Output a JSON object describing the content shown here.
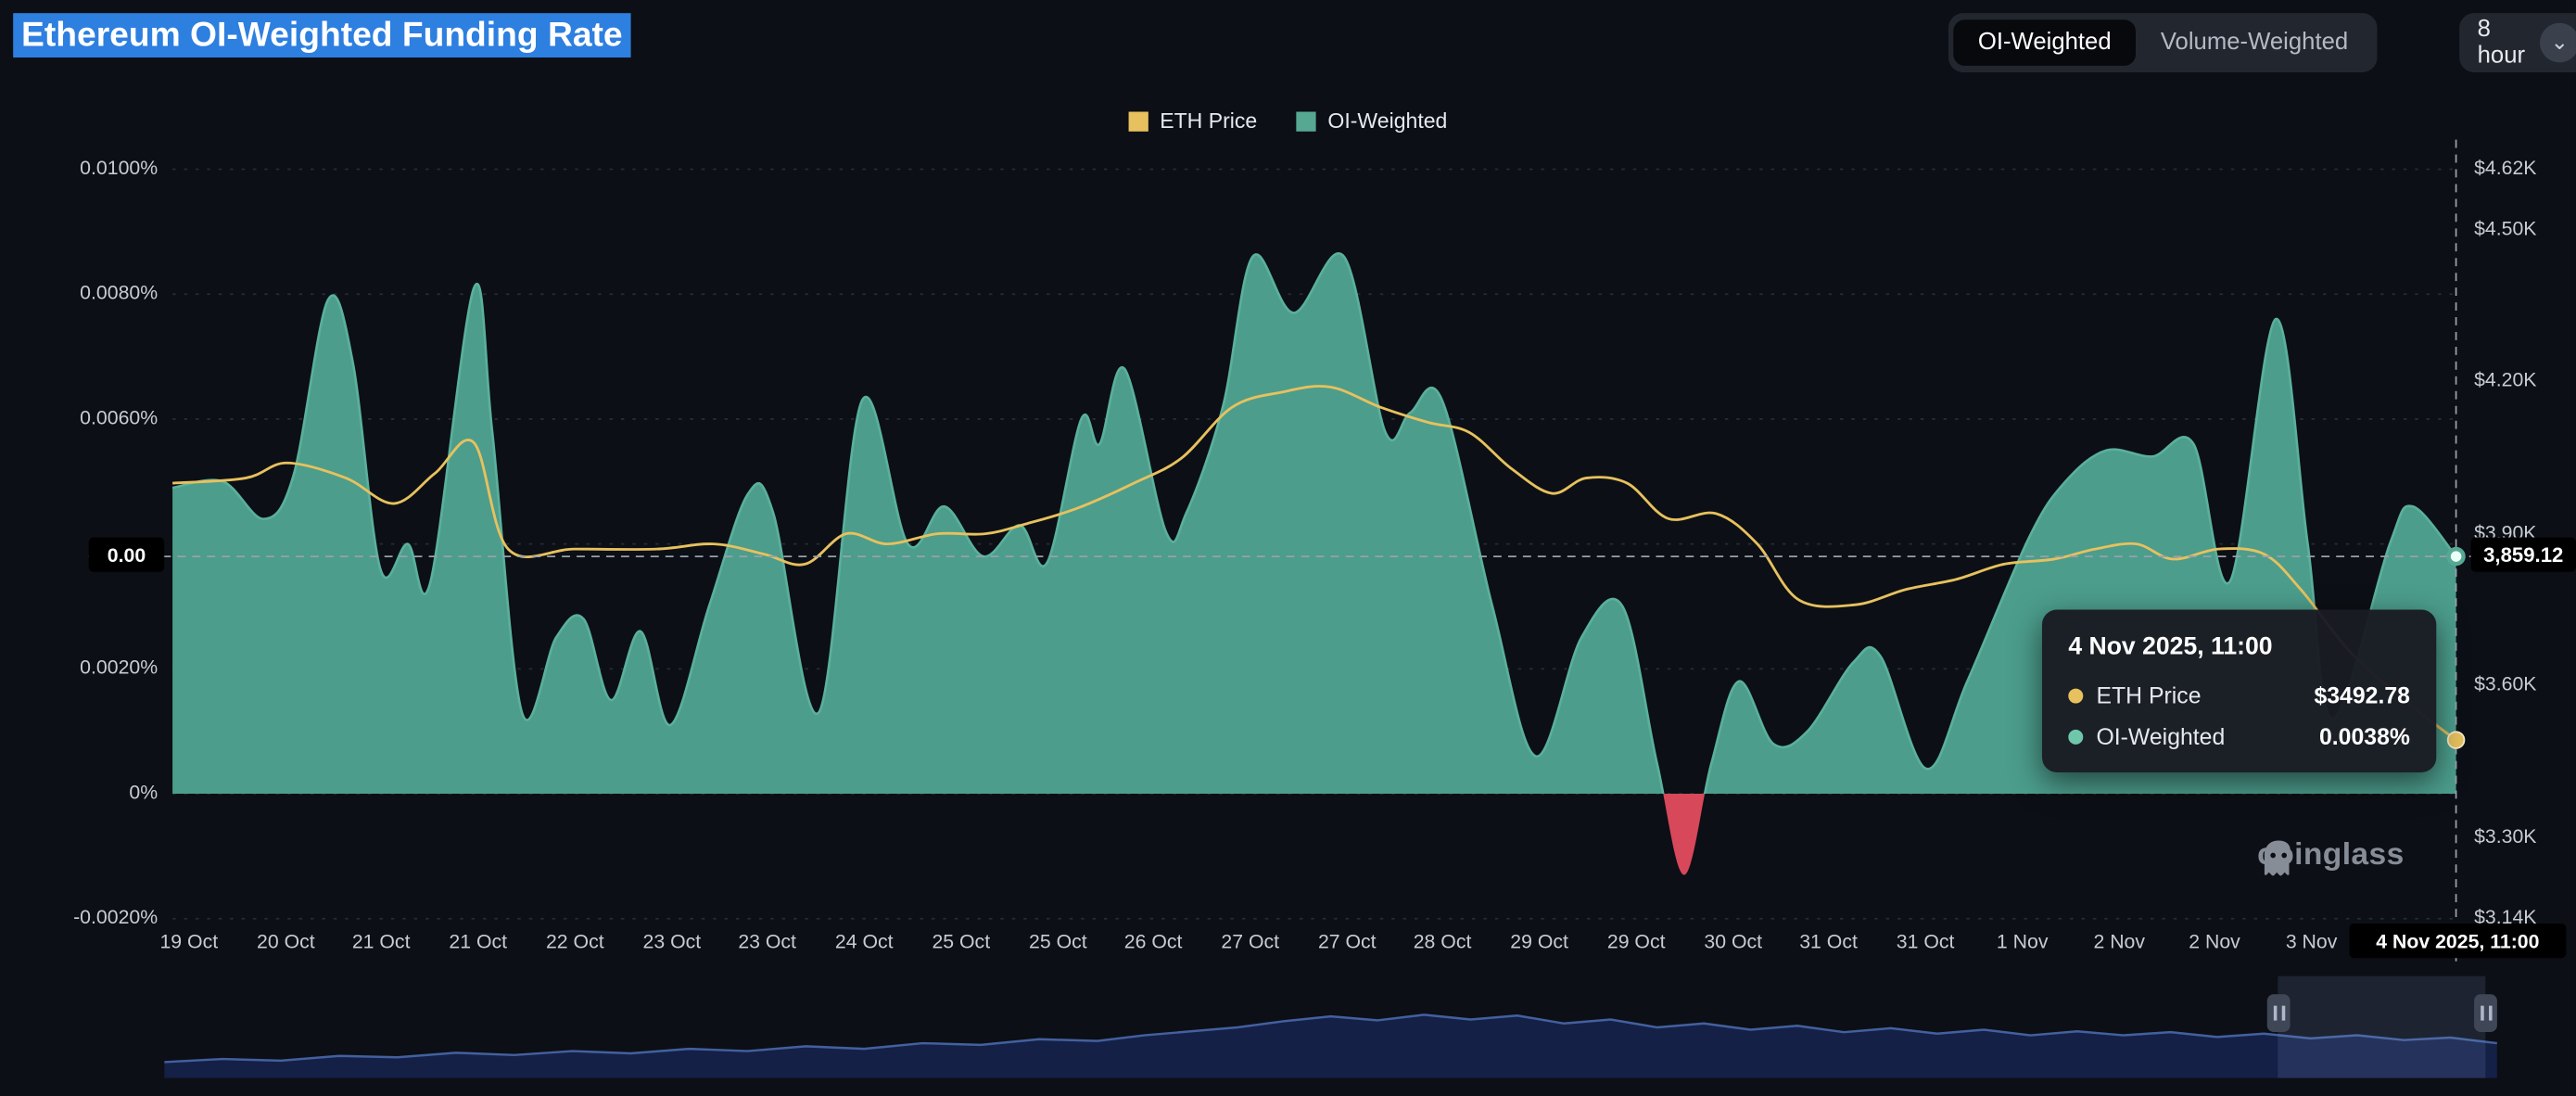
{
  "header": {
    "title": "Ethereum OI-Weighted Funding Rate",
    "toggle": {
      "options": [
        "OI-Weighted",
        "Volume-Weighted"
      ],
      "active": "OI-Weighted"
    },
    "interval_label": "8 hour"
  },
  "legend": [
    {
      "label": "ETH Price",
      "color": "#e7c15e"
    },
    {
      "label": "OI-Weighted",
      "color": "#57a893"
    }
  ],
  "tooltip": {
    "title": "4 Nov 2025, 11:00",
    "rows": [
      {
        "label": "ETH Price",
        "value": "$3492.78",
        "color": "#e7c15e"
      },
      {
        "label": "OI-Weighted",
        "value": "0.0038%",
        "color": "#6fc7ab"
      }
    ]
  },
  "axes": {
    "left_current": "0.00",
    "right_current": "3,859.12",
    "x_current": "4 Nov 2025, 11:00"
  },
  "watermark": "coinglass",
  "chart_data": {
    "type": "area+line",
    "title": "Ethereum OI-Weighted Funding Rate",
    "left_axis": {
      "unit": "%",
      "range": [
        -0.002,
        0.01
      ],
      "ticks": [
        {
          "v": 0.01,
          "label": "0.0100%"
        },
        {
          "v": 0.008,
          "label": "0.0080%"
        },
        {
          "v": 0.006,
          "label": "0.0060%"
        },
        {
          "v": 0.004,
          "label": ""
        },
        {
          "v": 0.002,
          "label": "0.0020%"
        },
        {
          "v": 0,
          "label": "0%"
        },
        {
          "v": -0.002,
          "label": "-0.0020%"
        }
      ]
    },
    "right_axis": {
      "unit": "$K",
      "range": [
        3.14,
        4.62
      ],
      "ticks": [
        {
          "v": 4.62,
          "label": "$4.62K"
        },
        {
          "v": 4.5,
          "label": "$4.50K"
        },
        {
          "v": 4.2,
          "label": "$4.20K"
        },
        {
          "v": 3.9,
          "label": "$3.90K"
        },
        {
          "v": 3.6,
          "label": "$3.60K"
        },
        {
          "v": 3.3,
          "label": "$3.30K"
        },
        {
          "v": 3.14,
          "label": "$3.14K"
        }
      ]
    },
    "x_axis": {
      "labels": [
        "19 Oct",
        "20 Oct",
        "21 Oct",
        "21 Oct",
        "22 Oct",
        "23 Oct",
        "23 Oct",
        "24 Oct",
        "25 Oct",
        "25 Oct",
        "26 Oct",
        "27 Oct",
        "27 Oct",
        "28 Oct",
        "29 Oct",
        "29 Oct",
        "30 Oct",
        "31 Oct",
        "31 Oct",
        "1 Nov",
        "2 Nov",
        "2 Nov",
        "3 Nov"
      ],
      "cursor": "4 Nov 2025, 11:00"
    },
    "series": [
      {
        "name": "OI-Weighted",
        "type": "area",
        "axis": "left",
        "color": "#4c9d8c",
        "stroke": "#5ab09c",
        "color_negative": "#d6485a",
        "points": [
          [
            0,
            0.0049
          ],
          [
            0.022,
            0.005
          ],
          [
            0.04,
            0.0044
          ],
          [
            0.053,
            0.0051
          ],
          [
            0.068,
            0.0079
          ],
          [
            0.079,
            0.0069
          ],
          [
            0.091,
            0.0036
          ],
          [
            0.103,
            0.004
          ],
          [
            0.113,
            0.0034
          ],
          [
            0.132,
            0.0081
          ],
          [
            0.14,
            0.0058
          ],
          [
            0.153,
            0.0013
          ],
          [
            0.168,
            0.0025
          ],
          [
            0.18,
            0.0028
          ],
          [
            0.192,
            0.0015
          ],
          [
            0.205,
            0.0026
          ],
          [
            0.218,
            0.0011
          ],
          [
            0.235,
            0.003
          ],
          [
            0.252,
            0.0048
          ],
          [
            0.263,
            0.0045
          ],
          [
            0.283,
            0.0013
          ],
          [
            0.302,
            0.0063
          ],
          [
            0.322,
            0.004
          ],
          [
            0.338,
            0.0046
          ],
          [
            0.355,
            0.0038
          ],
          [
            0.371,
            0.0043
          ],
          [
            0.383,
            0.0037
          ],
          [
            0.398,
            0.006
          ],
          [
            0.406,
            0.0056
          ],
          [
            0.417,
            0.0068
          ],
          [
            0.435,
            0.0042
          ],
          [
            0.444,
            0.0045
          ],
          [
            0.46,
            0.0062
          ],
          [
            0.473,
            0.0086
          ],
          [
            0.491,
            0.0077
          ],
          [
            0.513,
            0.0086
          ],
          [
            0.531,
            0.0058
          ],
          [
            0.542,
            0.0061
          ],
          [
            0.556,
            0.0063
          ],
          [
            0.578,
            0.003
          ],
          [
            0.597,
            0.0006
          ],
          [
            0.617,
            0.0025
          ],
          [
            0.635,
            0.003
          ],
          [
            0.65,
            0.0005
          ],
          [
            0.662,
            -0.0013
          ],
          [
            0.674,
            0.0005
          ],
          [
            0.686,
            0.0018
          ],
          [
            0.701,
            0.0008
          ],
          [
            0.716,
            0.001
          ],
          [
            0.736,
            0.0021
          ],
          [
            0.748,
            0.0022
          ],
          [
            0.768,
            0.0004
          ],
          [
            0.786,
            0.0018
          ],
          [
            0.813,
            0.0041
          ],
          [
            0.829,
            0.005
          ],
          [
            0.847,
            0.0055
          ],
          [
            0.867,
            0.0054
          ],
          [
            0.885,
            0.0056
          ],
          [
            0.901,
            0.0034
          ],
          [
            0.921,
            0.0076
          ],
          [
            0.935,
            0.004
          ],
          [
            0.946,
            0.0012
          ],
          [
            0.971,
            0.004
          ],
          [
            0.981,
            0.0046
          ],
          [
            1,
            0.0038
          ]
        ]
      },
      {
        "name": "ETH Price",
        "type": "line",
        "axis": "right",
        "color": "#e7c15e",
        "points": [
          [
            0,
            4.0
          ],
          [
            0.032,
            4.01
          ],
          [
            0.05,
            4.04
          ],
          [
            0.076,
            4.01
          ],
          [
            0.097,
            3.96
          ],
          [
            0.115,
            4.02
          ],
          [
            0.132,
            4.08
          ],
          [
            0.147,
            3.87
          ],
          [
            0.176,
            3.87
          ],
          [
            0.212,
            3.87
          ],
          [
            0.237,
            3.88
          ],
          [
            0.259,
            3.86
          ],
          [
            0.277,
            3.84
          ],
          [
            0.295,
            3.9
          ],
          [
            0.313,
            3.88
          ],
          [
            0.335,
            3.9
          ],
          [
            0.356,
            3.9
          ],
          [
            0.374,
            3.92
          ],
          [
            0.396,
            3.95
          ],
          [
            0.421,
            4.0
          ],
          [
            0.442,
            4.05
          ],
          [
            0.464,
            4.15
          ],
          [
            0.486,
            4.18
          ],
          [
            0.507,
            4.19
          ],
          [
            0.529,
            4.15
          ],
          [
            0.55,
            4.12
          ],
          [
            0.568,
            4.1
          ],
          [
            0.586,
            4.03
          ],
          [
            0.604,
            3.98
          ],
          [
            0.619,
            4.01
          ],
          [
            0.637,
            4.0
          ],
          [
            0.655,
            3.93
          ],
          [
            0.676,
            3.94
          ],
          [
            0.694,
            3.88
          ],
          [
            0.712,
            3.77
          ],
          [
            0.737,
            3.76
          ],
          [
            0.759,
            3.79
          ],
          [
            0.781,
            3.81
          ],
          [
            0.802,
            3.84
          ],
          [
            0.824,
            3.85
          ],
          [
            0.842,
            3.87
          ],
          [
            0.86,
            3.88
          ],
          [
            0.876,
            3.85
          ],
          [
            0.896,
            3.87
          ],
          [
            0.916,
            3.86
          ],
          [
            0.932,
            3.79
          ],
          [
            0.953,
            3.67
          ],
          [
            0.975,
            3.58
          ],
          [
            0.989,
            3.53
          ],
          [
            1,
            3.4928
          ]
        ]
      }
    ],
    "current": {
      "oi_weighted_pct": 0.0038,
      "eth_price_usd": 3492.78,
      "right_axis_marker": 3859.12
    },
    "navigator": {
      "window": [
        0.906,
        0.995
      ],
      "points": [
        [
          0,
          0.16
        ],
        [
          0.025,
          0.2
        ],
        [
          0.05,
          0.18
        ],
        [
          0.075,
          0.24
        ],
        [
          0.1,
          0.22
        ],
        [
          0.125,
          0.28
        ],
        [
          0.15,
          0.25
        ],
        [
          0.175,
          0.3
        ],
        [
          0.2,
          0.27
        ],
        [
          0.225,
          0.33
        ],
        [
          0.25,
          0.3
        ],
        [
          0.275,
          0.36
        ],
        [
          0.3,
          0.33
        ],
        [
          0.325,
          0.4
        ],
        [
          0.35,
          0.38
        ],
        [
          0.375,
          0.45
        ],
        [
          0.4,
          0.43
        ],
        [
          0.42,
          0.5
        ],
        [
          0.44,
          0.55
        ],
        [
          0.46,
          0.6
        ],
        [
          0.48,
          0.68
        ],
        [
          0.5,
          0.74
        ],
        [
          0.52,
          0.69
        ],
        [
          0.54,
          0.76
        ],
        [
          0.56,
          0.7
        ],
        [
          0.58,
          0.75
        ],
        [
          0.6,
          0.65
        ],
        [
          0.62,
          0.7
        ],
        [
          0.64,
          0.6
        ],
        [
          0.66,
          0.65
        ],
        [
          0.68,
          0.57
        ],
        [
          0.7,
          0.62
        ],
        [
          0.72,
          0.54
        ],
        [
          0.74,
          0.59
        ],
        [
          0.76,
          0.52
        ],
        [
          0.78,
          0.57
        ],
        [
          0.8,
          0.5
        ],
        [
          0.82,
          0.55
        ],
        [
          0.84,
          0.5
        ],
        [
          0.86,
          0.54
        ],
        [
          0.88,
          0.48
        ],
        [
          0.9,
          0.52
        ],
        [
          0.92,
          0.46
        ],
        [
          0.94,
          0.5
        ],
        [
          0.96,
          0.44
        ],
        [
          0.98,
          0.47
        ],
        [
          1,
          0.4
        ]
      ]
    }
  }
}
